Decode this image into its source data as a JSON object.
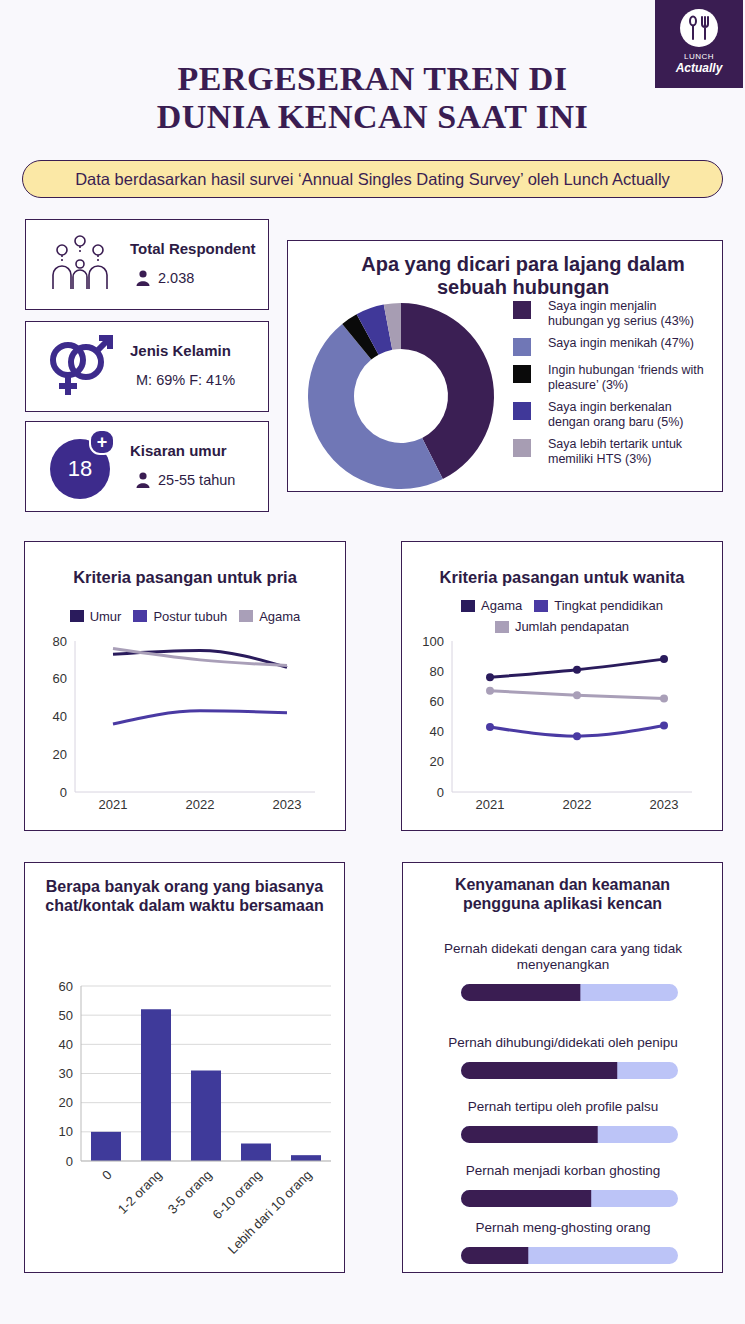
{
  "logo": {
    "line1": "LUNCH",
    "line2": "Actually"
  },
  "header": {
    "title": [
      "PERGESERAN TREN DI",
      "DUNIA KENCAN SAAT INI"
    ],
    "subtitle": "Data berdasarkan hasil survei ‘Annual Singles Dating Survey’ oleh Lunch Actually"
  },
  "stats": [
    {
      "label": "Total Respondent",
      "value": "2.038"
    },
    {
      "label": "Jenis Kelamin",
      "value": "M: 69%  F: 41%"
    },
    {
      "label": "Kisaran umur",
      "value": "25-55 tahun",
      "badge": "18",
      "badge_mark": "+"
    }
  ],
  "chart_data": [
    {
      "type": "donut",
      "title": "Apa yang dicari para lajang dalam sebuah hubungan",
      "categories": [
        "Saya ingin menjalin hubungan yg serius (43%)",
        "Saya ingin menikah (47%)",
        "Ingin hubungan ‘friends with pleasure’ (3%)",
        "Saya ingin berkenalan dengan orang baru (5%)",
        "Saya lebih tertarik untuk memiliki HTS  (3%)"
      ],
      "values": [
        43,
        47,
        3,
        5,
        3
      ],
      "colors": [
        "#3b1f54",
        "#7077b6",
        "#0a0a0a",
        "#403899",
        "#a79db3"
      ],
      "legend": "right"
    },
    {
      "type": "line",
      "title": "Kriteria pasangan untuk pria",
      "categories": [
        "2021",
        "2022",
        "2023"
      ],
      "series": [
        {
          "name": "Umur",
          "color": "#2a1b5c",
          "values": [
            73,
            75,
            66
          ]
        },
        {
          "name": "Postur tubuh",
          "color": "#4a3aa3",
          "values": [
            36,
            43,
            42
          ]
        },
        {
          "name": "Agama",
          "color": "#a99fb8",
          "values": [
            76,
            70,
            67
          ]
        }
      ],
      "ylim": [
        0,
        80
      ],
      "yticks": [
        0,
        20,
        40,
        60,
        80
      ],
      "grid": false,
      "legend": "top",
      "marker": "none",
      "line_style": "smooth"
    },
    {
      "type": "line",
      "title": "Kriteria pasangan untuk wanita",
      "categories": [
        "2021",
        "2022",
        "2023"
      ],
      "series": [
        {
          "name": "Agama",
          "color": "#2a1b5c",
          "values": [
            76,
            81,
            88
          ]
        },
        {
          "name": "Tingkat pendidikan",
          "color": "#4a3aa3",
          "values": [
            43,
            37,
            44
          ]
        },
        {
          "name": "Jumlah pendapatan",
          "color": "#a99fb8",
          "values": [
            67,
            64,
            62
          ]
        }
      ],
      "ylim": [
        0,
        100
      ],
      "yticks": [
        0,
        20,
        40,
        60,
        80,
        100
      ],
      "grid": false,
      "legend": "top",
      "marker": "circle",
      "line_style": "smooth"
    },
    {
      "type": "bar",
      "title": "Berapa banyak orang yang biasanya chat/kontak dalam waktu bersamaan",
      "categories": [
        "0",
        "1-2 orang",
        "3-5 orang",
        "6-10 orang",
        "Lebih dari 10 orang"
      ],
      "values": [
        10,
        52,
        31,
        6,
        2
      ],
      "color": "#3f3a9a",
      "ylim": [
        0,
        60
      ],
      "yticks": [
        0,
        10,
        20,
        30,
        40,
        50,
        60
      ],
      "grid": true
    },
    {
      "type": "bar",
      "orientation": "horizontal",
      "title": "Kenyamanan dan keamanan pengguna aplikasi kencan",
      "categories": [
        "Pernah didekati dengan cara yang tidak menyenangkan",
        "Pernah dihubungi/didekati oleh penipu",
        "Pernah tertipu oleh profile palsu",
        "Pernah menjadi korban ghosting",
        "Pernah meng-ghosting orang"
      ],
      "values": [
        55,
        72,
        63,
        60,
        31
      ],
      "xlim": [
        0,
        100
      ],
      "tick_labels": false,
      "color": "#3a1d52"
    }
  ]
}
